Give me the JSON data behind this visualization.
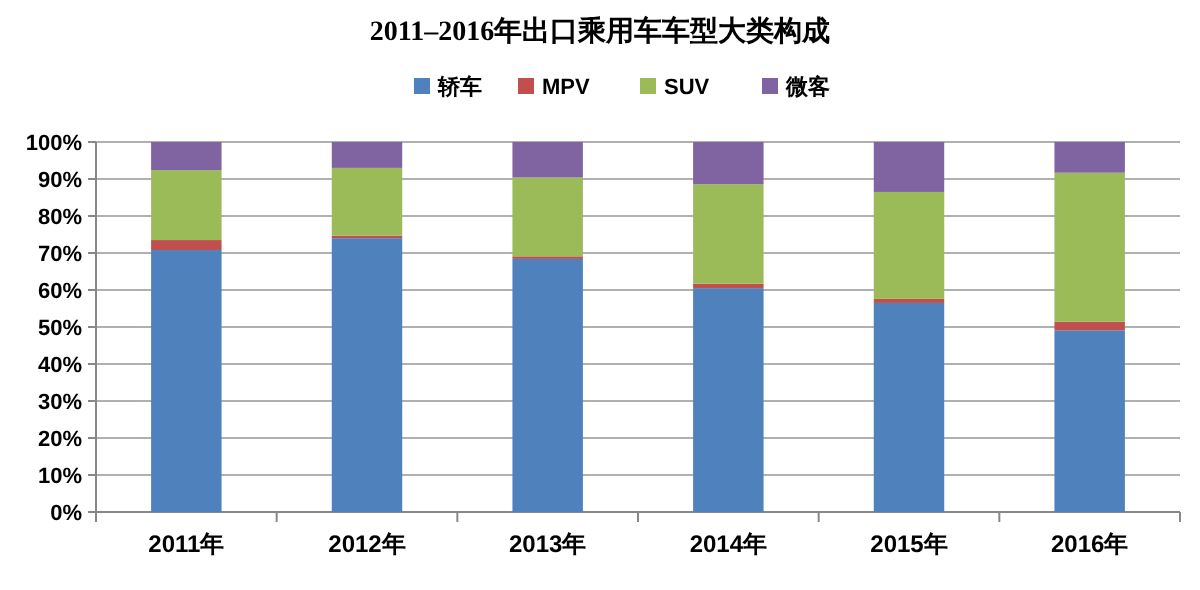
{
  "chart_data": {
    "type": "bar",
    "title": "2011–2016年出口乘用车车型大类构成",
    "categories": [
      "2011年",
      "2012年",
      "2013年",
      "2014年",
      "2015年",
      "2016年"
    ],
    "stacked": true,
    "legend": "top",
    "grid": "y",
    "ylim": [
      0,
      100
    ],
    "yticks": [
      {
        "value": 0,
        "label": "0%"
      },
      {
        "value": 10,
        "label": "10%"
      },
      {
        "value": 20,
        "label": "20%"
      },
      {
        "value": 30,
        "label": "30%"
      },
      {
        "value": 40,
        "label": "40%"
      },
      {
        "value": 50,
        "label": "50%"
      },
      {
        "value": 60,
        "label": "60%"
      },
      {
        "value": 70,
        "label": "70%"
      },
      {
        "value": 80,
        "label": "80%"
      },
      {
        "value": 90,
        "label": "90%"
      },
      {
        "value": 100,
        "label": "100%"
      }
    ],
    "series": [
      {
        "name": "轿车",
        "color": "#4f81bd",
        "values": [
          70.8,
          74.0,
          68.4,
          60.5,
          56.5,
          49.1
        ]
      },
      {
        "name": "MPV",
        "color": "#c0504d",
        "values": [
          2.7,
          0.7,
          0.7,
          1.2,
          1.1,
          2.3
        ]
      },
      {
        "name": "SUV",
        "color": "#9bbb59",
        "values": [
          18.9,
          18.3,
          21.3,
          26.9,
          28.9,
          40.3
        ]
      },
      {
        "name": "微客",
        "color": "#8064a2",
        "values": [
          7.6,
          7.0,
          9.6,
          11.4,
          13.5,
          8.3
        ]
      }
    ]
  }
}
